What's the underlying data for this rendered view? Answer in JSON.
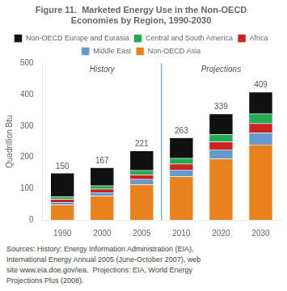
{
  "chart_data": {
    "type": "bar",
    "stacked": true,
    "title": "Figure 11.  Marketed Energy Use in the Non-OECD",
    "subtitle": "Economies by Region, 1990-2030",
    "y_label": "Quadrillion Btu",
    "categories": [
      "1990",
      "2000",
      "2005",
      "2010",
      "2020",
      "2030"
    ],
    "series": [
      {
        "name": "Non-OECD Asia",
        "color": "#E8821E",
        "values": [
          48,
          76,
          113,
          138,
          195,
          240
        ]
      },
      {
        "name": "Middle East",
        "color": "#6699CC",
        "values": [
          9,
          12,
          17,
          22,
          30,
          38
        ]
      },
      {
        "name": "Africa",
        "color": "#CC2222",
        "values": [
          9,
          11,
          14,
          19,
          24,
          30
        ]
      },
      {
        "name": "Central and South America",
        "color": "#22AA55",
        "values": [
          8,
          10,
          14,
          18,
          24,
          31
        ]
      },
      {
        "name": "Non-OECD Europe and Eurasia",
        "color": "#111111",
        "values": [
          76,
          58,
          63,
          66,
          66,
          70
        ]
      }
    ],
    "totals": [
      150,
      167,
      221,
      263,
      339,
      409
    ],
    "annotations": [
      {
        "text": "History",
        "x": "2000",
        "y": 492
      },
      {
        "text": "Projections",
        "x": "2020",
        "y": 492
      }
    ],
    "source": [
      "Sources: History: Energy Information Administration (EIA),",
      "International Energy Annual 2005 (June-October 2007), web",
      "site www.eia.doe.gov/iea.  Projections: EIA, World Energy",
      "Projections Plus (2008)."
    ],
    "ylim": [
      0,
      500
    ],
    "yticks": [
      0,
      100,
      200,
      300,
      400,
      500
    ],
    "grid": false,
    "legend": "top"
  }
}
